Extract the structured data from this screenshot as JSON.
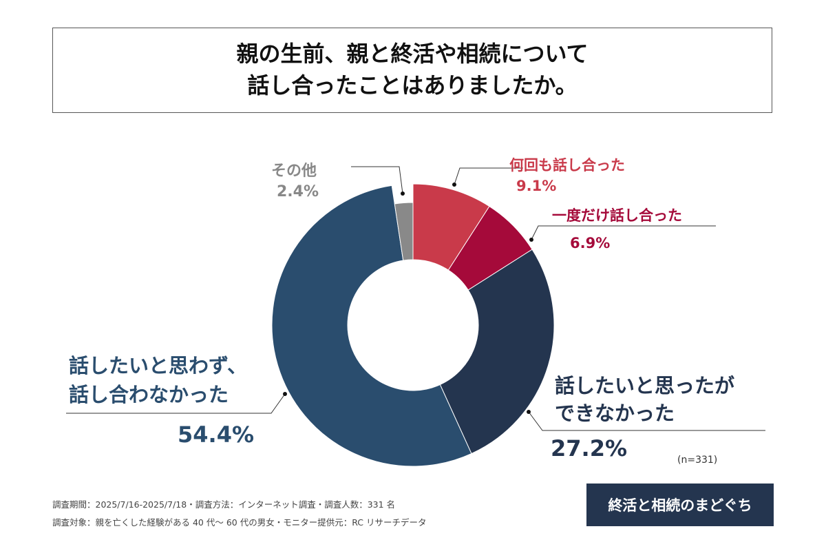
{
  "title": {
    "line1": "親の生前、親と終活や相続について",
    "line2": "話し合ったことはありましたか。"
  },
  "chart_data": {
    "type": "pie",
    "donut": true,
    "slices": [
      {
        "label": "何回も話し合った",
        "value": 9.1,
        "display": "9.1%",
        "color": "#c93a4a"
      },
      {
        "label": "一度だけ話し合った",
        "value": 6.9,
        "display": "6.9%",
        "color": "#a50a3a"
      },
      {
        "label": "話したいと思ったができなかった",
        "value": 27.2,
        "display": "27.2%",
        "color": "#24354f"
      },
      {
        "label": "話したいと思わず、話し合わなかった",
        "value": 54.4,
        "display": "54.4%",
        "color": "#2a4d6e"
      },
      {
        "label": "その他",
        "value": 2.4,
        "display": "2.4%",
        "color": "#898989"
      }
    ],
    "label_lines": {
      "s2": [
        "話したいと思ったが",
        "できなかった"
      ],
      "s3": [
        "話したいと思わず、",
        "話し合わなかった"
      ]
    },
    "n_note": "(n=331)"
  },
  "footer": {
    "line1": "調査期間：2025/7/16-2025/7/18・調査方法：インターネット調査・調査人数：331 名",
    "line2": "調査対象：親を亡くした経験がある 40 代～ 60 代の男女・モニター提供元：RC リサーチデータ"
  },
  "logo": "終活と相続のまどぐち"
}
